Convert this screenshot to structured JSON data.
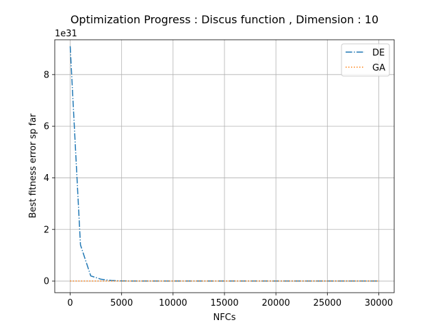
{
  "chart_data": {
    "type": "line",
    "title": "Optimization Progress : Discus function , Dimension : 10",
    "xlabel": "NFCs",
    "ylabel": "Best fitness error sp far",
    "y_scale_label": "1e31",
    "xlim": [
      -1500,
      31500
    ],
    "ylim": [
      -0.45,
      9.35
    ],
    "x_ticks": [
      0,
      5000,
      10000,
      15000,
      20000,
      25000,
      30000
    ],
    "x_tick_labels": [
      "0",
      "5000",
      "10000",
      "15000",
      "20000",
      "25000",
      "30000"
    ],
    "y_ticks": [
      0,
      2,
      4,
      6,
      8
    ],
    "y_tick_labels": [
      "0",
      "2",
      "4",
      "6",
      "8"
    ],
    "grid": true,
    "legend_position": "top-right",
    "series": [
      {
        "name": "DE",
        "color": "#1f77b4",
        "linestyle": "dashdot",
        "x": [
          0,
          1000,
          2000,
          3000,
          4000,
          5000,
          6000,
          8000,
          10000,
          12000,
          15000,
          20000,
          25000,
          30000
        ],
        "y": [
          9.1,
          1.4,
          0.2,
          0.07,
          0.02,
          0.005,
          0.002,
          0.001,
          0.0005,
          0.0002,
          0.0001,
          0.0001,
          0.0001,
          0.0001
        ]
      },
      {
        "name": "GA",
        "color": "#ff7f0e",
        "linestyle": "dotted",
        "x": [
          0,
          5000,
          10000,
          15000,
          20000,
          25000,
          30000
        ],
        "y": [
          0.0,
          0.0,
          0.0,
          0.0,
          0.0,
          0.0,
          0.0
        ]
      }
    ]
  }
}
